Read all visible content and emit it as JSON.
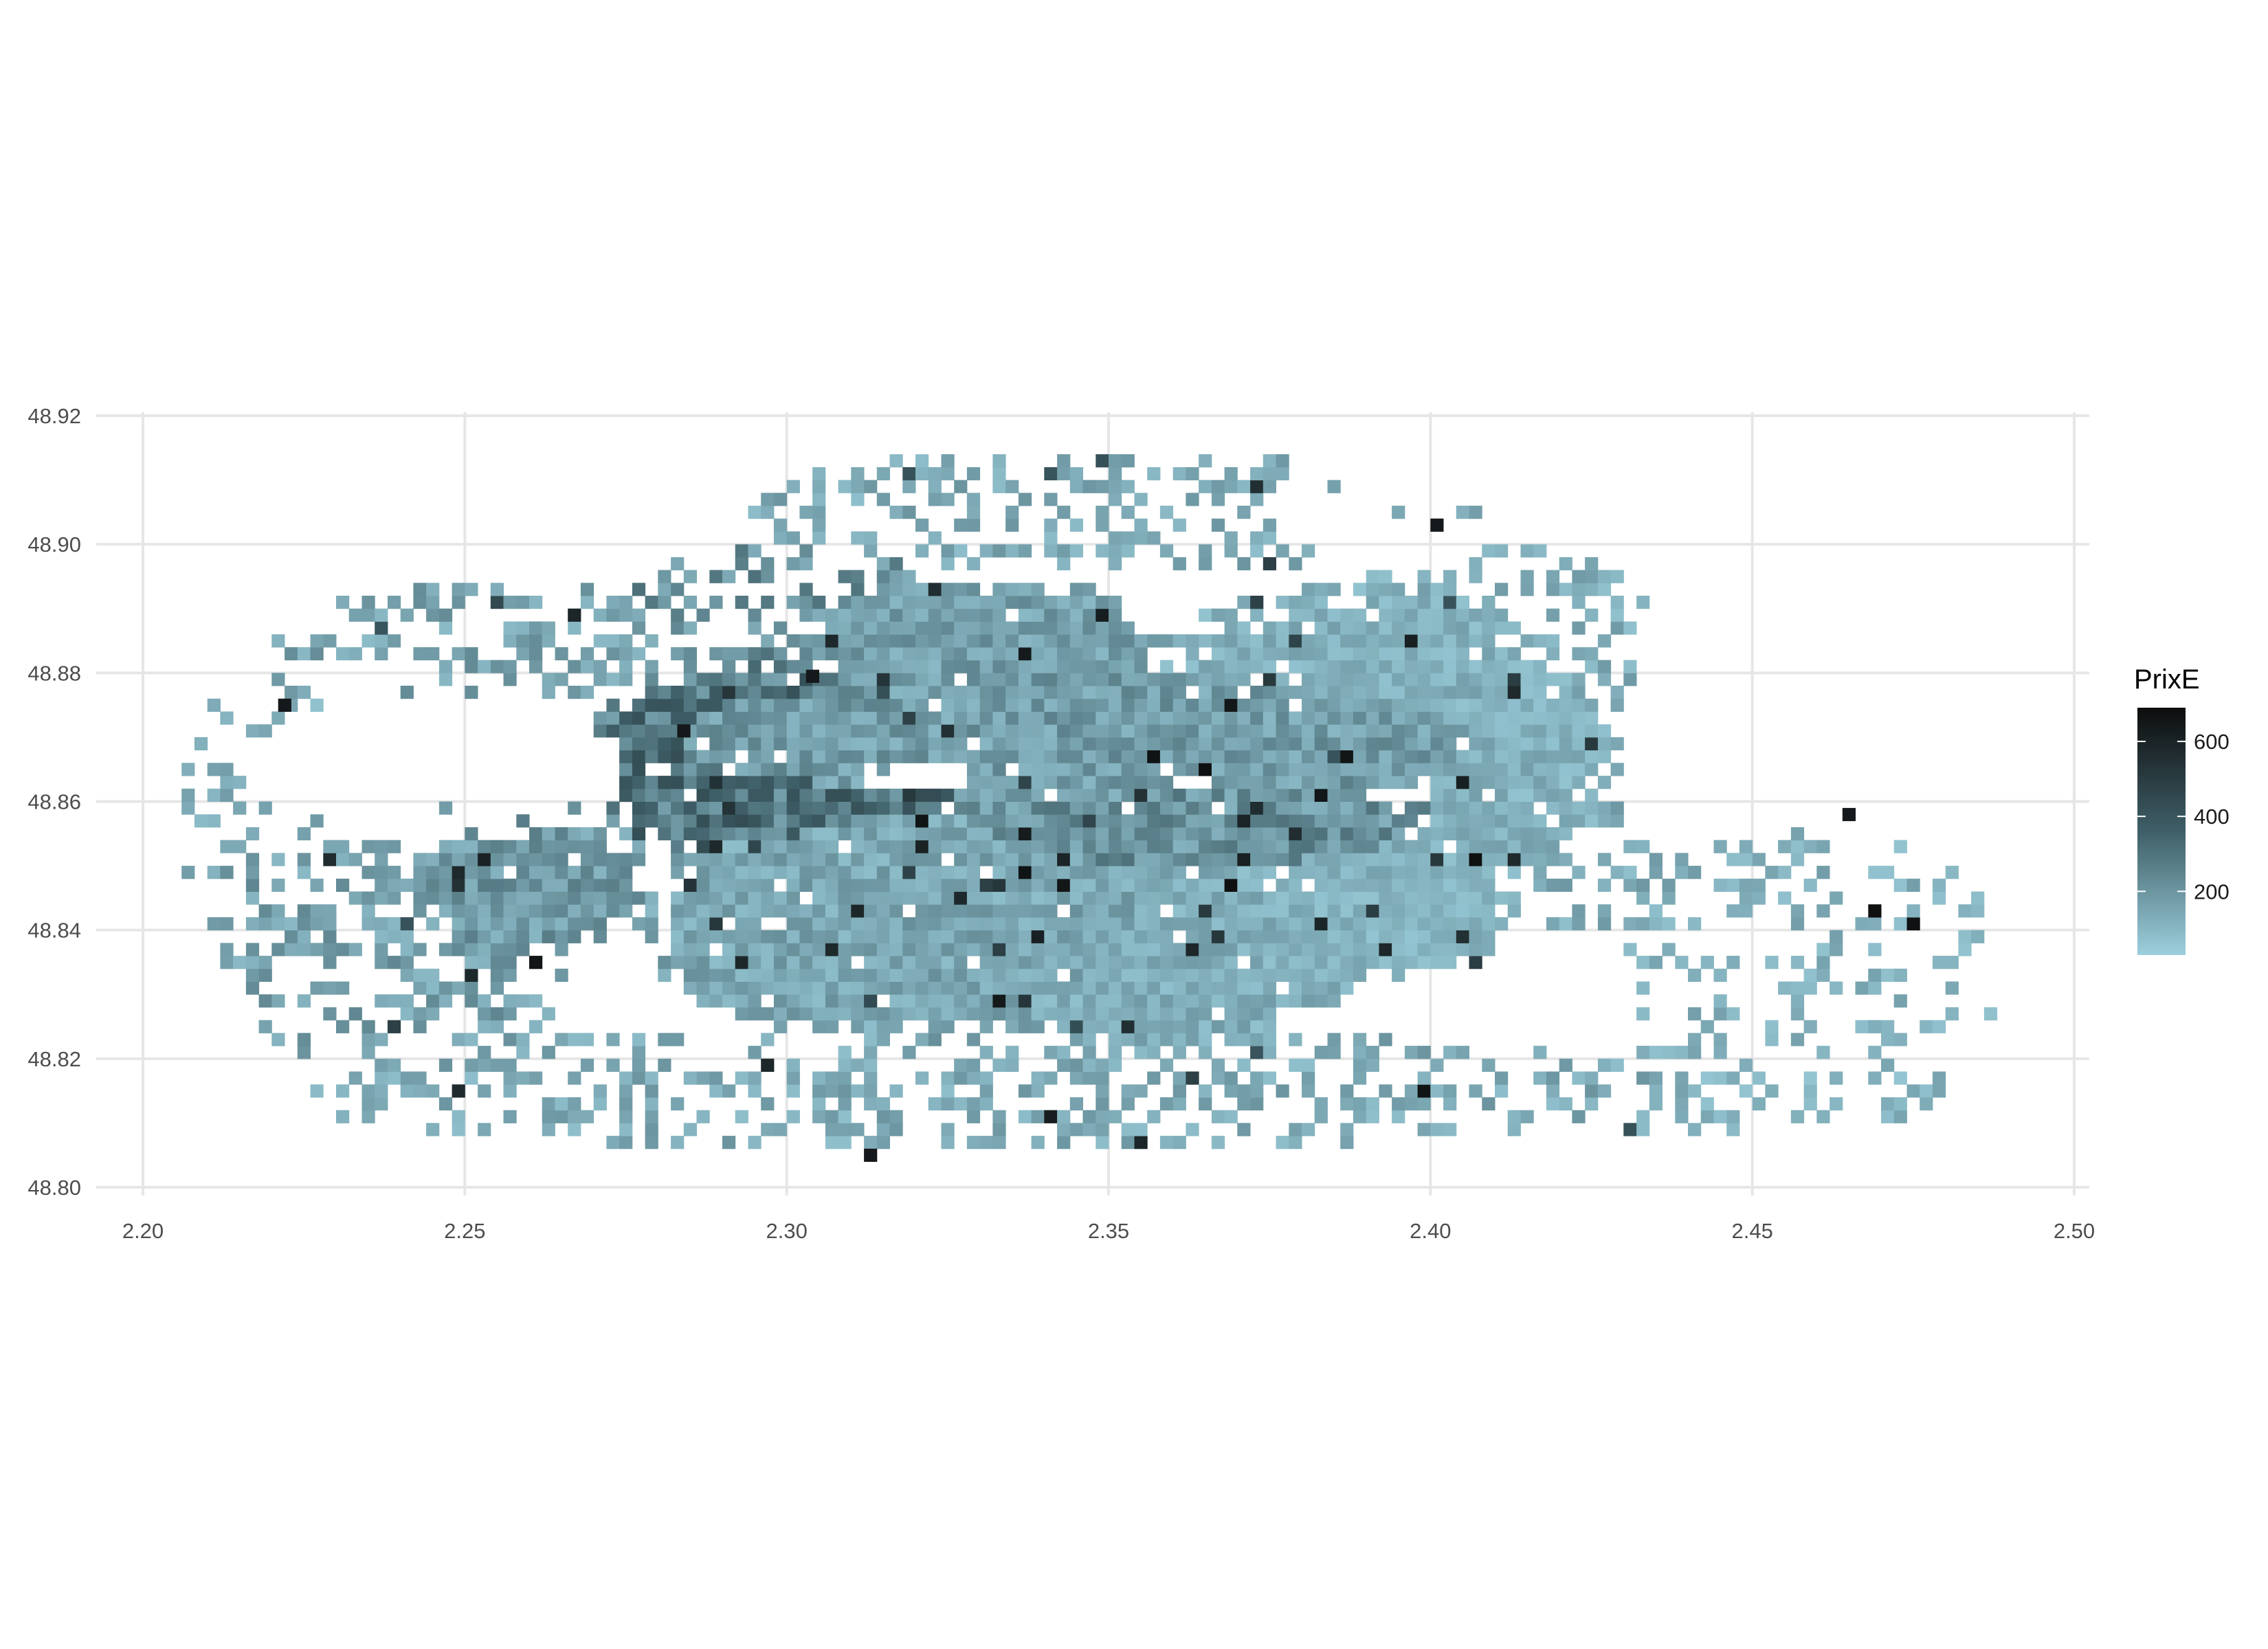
{
  "chart_data": {
    "type": "heatmap",
    "title": "",
    "xlabel": "",
    "ylabel": "",
    "xlim": [
      2.2,
      2.5
    ],
    "ylim": [
      48.8,
      48.92
    ],
    "x_ticks": [
      "2.20",
      "2.25",
      "2.30",
      "2.35",
      "2.40",
      "2.45",
      "2.50"
    ],
    "y_ticks": [
      "48.80",
      "48.82",
      "48.84",
      "48.86",
      "48.88",
      "48.90",
      "48.92"
    ],
    "grid": true,
    "legend": {
      "title": "PrixE",
      "placement": "right",
      "ticks": [
        "200",
        "400",
        "600"
      ],
      "range": [
        30,
        690
      ],
      "color_low": "#9ccfdc",
      "color_mid": "#3f5f68",
      "color_high": "#0d0d0d"
    },
    "cell_size": [
      0.002,
      0.002
    ],
    "regions": [
      {
        "cx": 2.345,
        "cy": 48.87,
        "rx": 0.08,
        "ry": 0.012,
        "price": 180
      },
      {
        "cx": 2.365,
        "cy": 48.858,
        "rx": 0.045,
        "ry": 0.01,
        "price": 210
      },
      {
        "cx": 2.39,
        "cy": 48.868,
        "rx": 0.04,
        "ry": 0.028,
        "price": 120
      },
      {
        "cx": 2.32,
        "cy": 48.842,
        "rx": 0.045,
        "ry": 0.02,
        "price": 150
      },
      {
        "cx": 2.36,
        "cy": 48.836,
        "rx": 0.03,
        "ry": 0.016,
        "price": 130
      },
      {
        "cx": 2.3,
        "cy": 48.866,
        "rx": 0.035,
        "ry": 0.016,
        "price": 300
      },
      {
        "cx": 2.33,
        "cy": 48.885,
        "rx": 0.03,
        "ry": 0.01,
        "price": 170
      },
      {
        "cx": 2.395,
        "cy": 48.843,
        "rx": 0.02,
        "ry": 0.01,
        "price": 110
      },
      {
        "cx": 2.26,
        "cy": 48.848,
        "rx": 0.02,
        "ry": 0.012,
        "price": 190
      }
    ],
    "sparse_regions": [
      {
        "cx": 2.33,
        "cy": 48.815,
        "rx": 0.11,
        "ry": 0.01,
        "price": 140,
        "density": 0.45
      },
      {
        "cx": 2.24,
        "cy": 48.84,
        "rx": 0.03,
        "ry": 0.022,
        "price": 170,
        "density": 0.55
      },
      {
        "cx": 2.22,
        "cy": 48.86,
        "rx": 0.016,
        "ry": 0.02,
        "price": 130,
        "density": 0.35
      },
      {
        "cx": 2.46,
        "cy": 48.835,
        "rx": 0.03,
        "ry": 0.02,
        "price": 120,
        "density": 0.3
      },
      {
        "cx": 2.43,
        "cy": 48.852,
        "rx": 0.03,
        "ry": 0.012,
        "price": 140,
        "density": 0.45
      },
      {
        "cx": 2.415,
        "cy": 48.885,
        "rx": 0.02,
        "ry": 0.015,
        "price": 130,
        "density": 0.45
      },
      {
        "cx": 2.35,
        "cy": 48.905,
        "rx": 0.06,
        "ry": 0.01,
        "price": 140,
        "density": 0.4
      },
      {
        "cx": 2.26,
        "cy": 48.885,
        "rx": 0.04,
        "ry": 0.01,
        "price": 160,
        "density": 0.45
      },
      {
        "cx": 2.3,
        "cy": 48.89,
        "rx": 0.025,
        "ry": 0.01,
        "price": 220,
        "density": 0.5
      },
      {
        "cx": 2.45,
        "cy": 48.815,
        "rx": 0.03,
        "ry": 0.008,
        "price": 110,
        "density": 0.3
      }
    ],
    "holes": [
      {
        "cx": 2.245,
        "cy": 48.865,
        "rx": 0.03,
        "ry": 0.012
      },
      {
        "cx": 2.39,
        "cy": 48.905,
        "rx": 0.015,
        "ry": 0.01
      },
      {
        "cx": 2.32,
        "cy": 48.864,
        "rx": 0.01,
        "ry": 0.002
      },
      {
        "cx": 2.44,
        "cy": 48.86,
        "rx": 0.01,
        "ry": 0.006
      },
      {
        "cx": 2.395,
        "cy": 48.861,
        "rx": 0.005,
        "ry": 0.002
      }
    ]
  }
}
